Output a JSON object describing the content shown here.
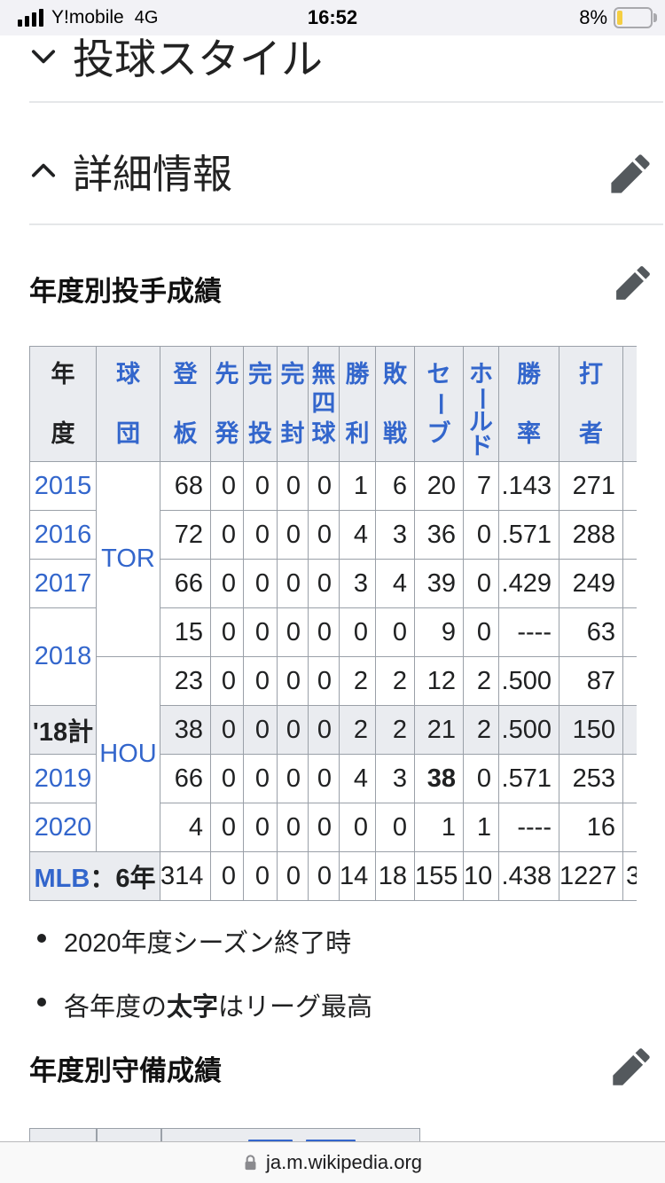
{
  "status_bar": {
    "carrier": "Y!mobile",
    "network": "4G",
    "time": "16:52",
    "battery_percent": "8%"
  },
  "sections": {
    "pitching_style_title": "投球スタイル",
    "details_title": "詳細情報",
    "pitching_stats_title": "年度別投手成績",
    "fielding_stats_title": "年度別守備成績"
  },
  "stats_table": {
    "columns": [
      {
        "label": "年度",
        "link": false
      },
      {
        "label": "球団",
        "link": true
      },
      {
        "label": "登板",
        "link": true
      },
      {
        "label": "先発",
        "link": true
      },
      {
        "label": "完投",
        "link": true
      },
      {
        "label": "完封",
        "link": true
      },
      {
        "label": "無四球",
        "link": true
      },
      {
        "label": "勝利",
        "link": true
      },
      {
        "label": "敗戦",
        "link": true
      },
      {
        "label": "セーブ",
        "link": true
      },
      {
        "label": "ホールド",
        "link": true
      },
      {
        "label": "勝率",
        "link": true
      },
      {
        "label": "打者",
        "link": true
      },
      {
        "label": "",
        "link": false
      }
    ],
    "rows": [
      {
        "cells": [
          {
            "t": "2015",
            "type": "year"
          },
          {
            "t": "TOR",
            "type": "team",
            "rowspan": 4
          },
          {
            "t": "68"
          },
          {
            "t": "0"
          },
          {
            "t": "0"
          },
          {
            "t": "0"
          },
          {
            "t": "0"
          },
          {
            "t": "1"
          },
          {
            "t": "6"
          },
          {
            "t": "20"
          },
          {
            "t": "7"
          },
          {
            "t": ".143"
          },
          {
            "t": "271"
          },
          {
            "t": "",
            "type": "cut"
          }
        ]
      },
      {
        "cells": [
          {
            "t": "2016",
            "type": "year"
          },
          {
            "t": "72"
          },
          {
            "t": "0"
          },
          {
            "t": "0"
          },
          {
            "t": "0"
          },
          {
            "t": "0"
          },
          {
            "t": "4"
          },
          {
            "t": "3"
          },
          {
            "t": "36"
          },
          {
            "t": "0"
          },
          {
            "t": ".571"
          },
          {
            "t": "288"
          },
          {
            "t": "",
            "type": "cut"
          }
        ]
      },
      {
        "cells": [
          {
            "t": "2017",
            "type": "year"
          },
          {
            "t": "66"
          },
          {
            "t": "0"
          },
          {
            "t": "0"
          },
          {
            "t": "0"
          },
          {
            "t": "0"
          },
          {
            "t": "3"
          },
          {
            "t": "4"
          },
          {
            "t": "39"
          },
          {
            "t": "0"
          },
          {
            "t": ".429"
          },
          {
            "t": "249"
          },
          {
            "t": "",
            "type": "cut"
          }
        ]
      },
      {
        "cells": [
          {
            "t": "2018",
            "type": "year",
            "rowspan": 2
          },
          {
            "t": "15"
          },
          {
            "t": "0"
          },
          {
            "t": "0"
          },
          {
            "t": "0"
          },
          {
            "t": "0"
          },
          {
            "t": "0"
          },
          {
            "t": "0"
          },
          {
            "t": "9"
          },
          {
            "t": "0"
          },
          {
            "t": "----"
          },
          {
            "t": "63"
          },
          {
            "t": "",
            "type": "cut"
          }
        ]
      },
      {
        "cells": [
          {
            "t": "HOU",
            "type": "team",
            "rowspan": 4
          },
          {
            "t": "23"
          },
          {
            "t": "0"
          },
          {
            "t": "0"
          },
          {
            "t": "0"
          },
          {
            "t": "0"
          },
          {
            "t": "2"
          },
          {
            "t": "2"
          },
          {
            "t": "12"
          },
          {
            "t": "2"
          },
          {
            "t": ".500"
          },
          {
            "t": "87"
          },
          {
            "t": "",
            "type": "cut"
          }
        ]
      },
      {
        "gray": true,
        "cells": [
          {
            "t": "'18計",
            "type": "label"
          },
          {
            "t": "38"
          },
          {
            "t": "0"
          },
          {
            "t": "0"
          },
          {
            "t": "0"
          },
          {
            "t": "0"
          },
          {
            "t": "2"
          },
          {
            "t": "2"
          },
          {
            "t": "21"
          },
          {
            "t": "2"
          },
          {
            "t": ".500"
          },
          {
            "t": "150"
          },
          {
            "t": "",
            "type": "cut"
          }
        ]
      },
      {
        "cells": [
          {
            "t": "2019",
            "type": "year"
          },
          {
            "t": "66"
          },
          {
            "t": "0"
          },
          {
            "t": "0"
          },
          {
            "t": "0"
          },
          {
            "t": "0"
          },
          {
            "t": "4"
          },
          {
            "t": "3"
          },
          {
            "t": "38",
            "bold": true
          },
          {
            "t": "0"
          },
          {
            "t": ".571"
          },
          {
            "t": "253"
          },
          {
            "t": "",
            "type": "cut"
          }
        ]
      },
      {
        "cells": [
          {
            "t": "2020",
            "type": "year"
          },
          {
            "t": "4"
          },
          {
            "t": "0"
          },
          {
            "t": "0"
          },
          {
            "t": "0"
          },
          {
            "t": "0"
          },
          {
            "t": "0"
          },
          {
            "t": "0"
          },
          {
            "t": "1"
          },
          {
            "t": "1"
          },
          {
            "t": "----"
          },
          {
            "t": "16"
          },
          {
            "t": "",
            "type": "cut"
          }
        ]
      },
      {
        "cells": [
          {
            "t": "MLB",
            "t2": "：6年",
            "type": "mlb",
            "colspan": 2
          },
          {
            "t": "314"
          },
          {
            "t": "0"
          },
          {
            "t": "0"
          },
          {
            "t": "0"
          },
          {
            "t": "0"
          },
          {
            "t": "14"
          },
          {
            "t": "18"
          },
          {
            "t": "155"
          },
          {
            "t": "10"
          },
          {
            "t": ".438"
          },
          {
            "t": "1227"
          },
          {
            "t": "3",
            "type": "cut"
          }
        ]
      }
    ]
  },
  "notes": {
    "note1": "2020年度シーズン終了時",
    "note2_pre": "各年度の",
    "note2_bold": "太字",
    "note2_post": "はリーグ最高"
  },
  "browser_bar": {
    "url": "ja.m.wikipedia.org"
  },
  "colors": {
    "link_blue": "#3366cc",
    "table_header_bg": "#eaecf0",
    "battery_low_power": "#f5ce42"
  }
}
